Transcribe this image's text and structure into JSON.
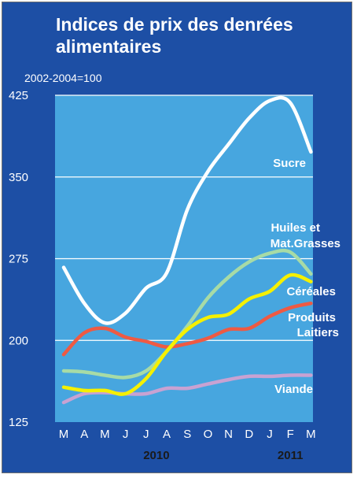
{
  "chart_data": {
    "type": "line",
    "title_lines": [
      "Indices de prix des denrées",
      "alimentaires"
    ],
    "subtitle": "2002-2004=100",
    "categories": [
      "M",
      "A",
      "M",
      "J",
      "J",
      "A",
      "S",
      "O",
      "N",
      "D",
      "J",
      "F",
      "M"
    ],
    "years": [
      "2010",
      "2011"
    ],
    "yticks": [
      "425",
      "350",
      "275",
      "200",
      "125"
    ],
    "ylim": [
      125,
      425
    ],
    "grid": true,
    "series": [
      {
        "name": "Sucre",
        "color": "#ffffff",
        "values": [
          267,
          234,
          216,
          225,
          248,
          262,
          320,
          355,
          380,
          404,
          420,
          418,
          373
        ]
      },
      {
        "name_lines": [
          "Huiles et",
          "Mat.Grasses"
        ],
        "color": "#a7dba6",
        "values": [
          172,
          171,
          168,
          166,
          172,
          190,
          213,
          239,
          258,
          272,
          280,
          281,
          261
        ]
      },
      {
        "name": "Céréales",
        "color": "#f5f000",
        "values": [
          157,
          154,
          154,
          151,
          165,
          190,
          210,
          221,
          224,
          238,
          245,
          260,
          254
        ]
      },
      {
        "name_lines": [
          "Produits",
          "Laitiers"
        ],
        "color": "#ee5a43",
        "values": [
          187,
          207,
          211,
          203,
          199,
          194,
          197,
          202,
          210,
          211,
          222,
          230,
          234
        ]
      },
      {
        "name": "Viande",
        "color": "#c8a2d2",
        "values": [
          143,
          151,
          152,
          151,
          151,
          156,
          156,
          160,
          164,
          167,
          167,
          168,
          168
        ]
      }
    ]
  }
}
